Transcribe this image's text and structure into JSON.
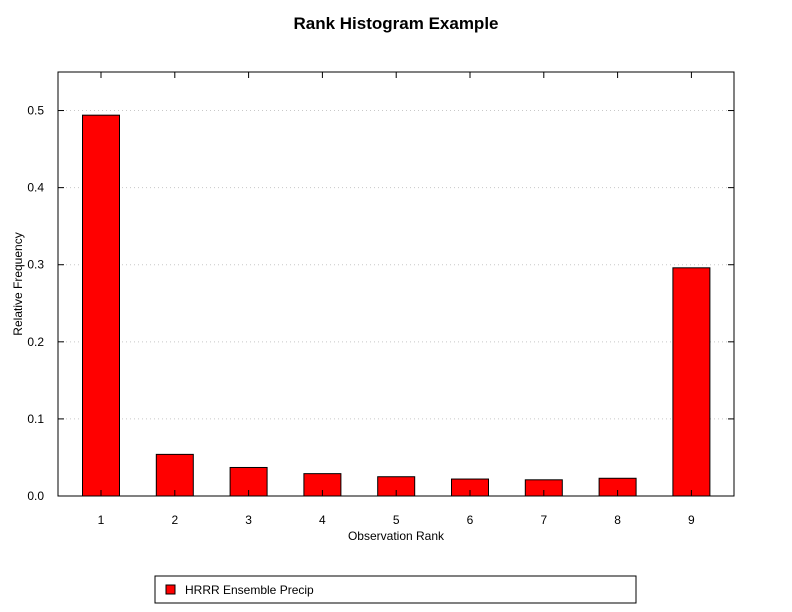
{
  "chart_data": {
    "type": "bar",
    "title": "Rank Histogram Example",
    "xlabel": "Observation Rank",
    "ylabel": "Relative Frequency",
    "categories": [
      "1",
      "2",
      "3",
      "4",
      "5",
      "6",
      "7",
      "8",
      "9"
    ],
    "series": [
      {
        "name": "HRRR Ensemble Precip",
        "color": "#ff0000",
        "values": [
          0.494,
          0.054,
          0.037,
          0.029,
          0.025,
          0.022,
          0.021,
          0.023,
          0.296
        ]
      }
    ],
    "ylim": [
      0,
      0.55
    ],
    "yticks": [
      0.0,
      0.1,
      0.2,
      0.3,
      0.4,
      0.5
    ],
    "ytick_labels": [
      "0.0",
      "0.1",
      "0.2",
      "0.3",
      "0.4",
      "0.5"
    ],
    "grid": "horizontal dotted",
    "legend_position": "bottom"
  }
}
